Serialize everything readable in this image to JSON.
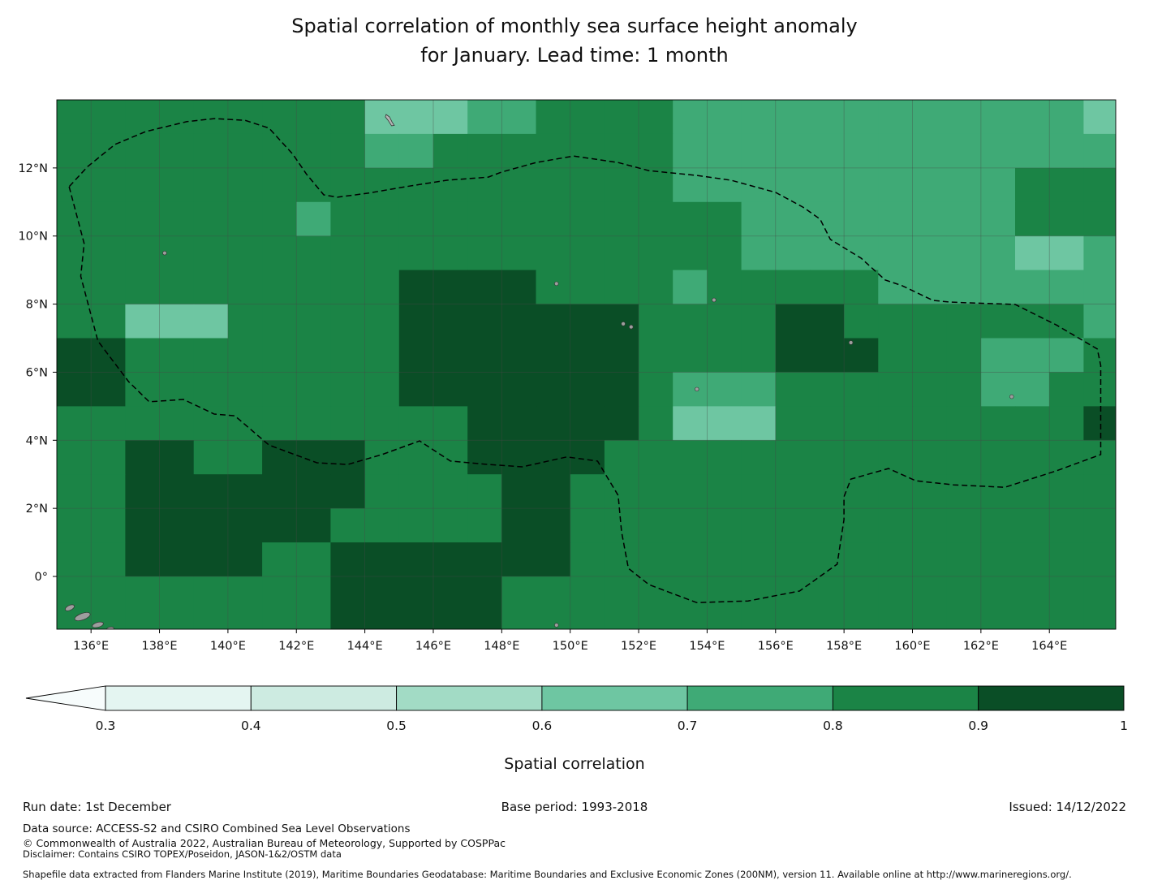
{
  "title": {
    "line1": "Spatial correlation of monthly sea surface height anomaly",
    "line2": "for January. Lead time: 1 month"
  },
  "colorbar": {
    "label": "Spatial correlation",
    "ticks": [
      "0.3",
      "0.4",
      "0.5",
      "0.6",
      "0.7",
      "0.8",
      "0.9",
      "1"
    ],
    "boundaries": [
      0.3,
      0.4,
      0.5,
      0.6,
      0.7,
      0.8,
      0.9,
      1.0
    ],
    "under_color": "#f7fcfc",
    "band_colors": [
      "#e4f5f1",
      "#cdebe1",
      "#a2dbc5",
      "#6ec6a2",
      "#3faa76",
      "#1b8446",
      "#0a4e26"
    ]
  },
  "footer": {
    "run_date": "Run date: 1st December",
    "base_period": "Base period: 1993-2018",
    "issued": "Issued: 14/12/2022",
    "data_source": "Data source: ACCESS-S2 and CSIRO Combined Sea Level Observations",
    "copyright": "© Commonwealth of Australia 2022, Australian Bureau of Meteorology, Supported by COSPPac",
    "disclaimer": "Disclaimer: Contains CSIRO TOPEX/Poseidon, JASON-1&2/OSTM data",
    "shapefile": "Shapefile data extracted from Flanders Marine Institute (2019), Maritime Boundaries Geodatabase: Maritime Boundaries and Exclusive Economic Zones (200NM), version 11. Available online at http://www.marineregions.org/."
  },
  "chart_data": {
    "type": "heatmap",
    "title": "Spatial correlation of monthly sea surface height anomaly for January. Lead time: 1 month",
    "xlabel": "",
    "ylabel": "",
    "legend": "Spatial correlation, banded colour scale 0.3 to 1 in 0.1 steps",
    "x_range_lon_e": [
      135,
      166
    ],
    "y_range_lat_n": [
      -1.6,
      14
    ],
    "grid_on": true,
    "xticks": [
      {
        "lon": 136,
        "label": "136°E"
      },
      {
        "lon": 138,
        "label": "138°E"
      },
      {
        "lon": 140,
        "label": "140°E"
      },
      {
        "lon": 142,
        "label": "142°E"
      },
      {
        "lon": 144,
        "label": "144°E"
      },
      {
        "lon": 146,
        "label": "146°E"
      },
      {
        "lon": 148,
        "label": "148°E"
      },
      {
        "lon": 150,
        "label": "150°E"
      },
      {
        "lon": 152,
        "label": "152°E"
      },
      {
        "lon": 154,
        "label": "154°E"
      },
      {
        "lon": 156,
        "label": "156°E"
      },
      {
        "lon": 158,
        "label": "158°E"
      },
      {
        "lon": 160,
        "label": "160°E"
      },
      {
        "lon": 162,
        "label": "162°E"
      },
      {
        "lon": 164,
        "label": "164°E"
      }
    ],
    "yticks": [
      {
        "lat": 12,
        "label": "12°N"
      },
      {
        "lat": 10,
        "label": "10°N"
      },
      {
        "lat": 8,
        "label": "8°N"
      },
      {
        "lat": 6,
        "label": "6°N"
      },
      {
        "lat": 4,
        "label": "4°N"
      },
      {
        "lat": 2,
        "label": "2°N"
      },
      {
        "lat": 0,
        "label": "0°"
      }
    ],
    "grid_lon_start": 135,
    "grid_lat_start": 14,
    "grid_step_deg": 1,
    "values_note": "Estimated correlation band midpoints; rows run north to south (lat 14N to -2), columns west to east (lon 135E to 166E)",
    "values": [
      [
        0.85,
        0.85,
        0.85,
        0.85,
        0.85,
        0.85,
        0.85,
        0.85,
        0.85,
        0.65,
        0.65,
        0.65,
        0.75,
        0.75,
        0.85,
        0.85,
        0.85,
        0.85,
        0.75,
        0.75,
        0.75,
        0.75,
        0.75,
        0.75,
        0.75,
        0.75,
        0.75,
        0.75,
        0.75,
        0.75,
        0.65
      ],
      [
        0.85,
        0.85,
        0.85,
        0.85,
        0.85,
        0.85,
        0.85,
        0.85,
        0.85,
        0.75,
        0.75,
        0.85,
        0.85,
        0.85,
        0.85,
        0.85,
        0.85,
        0.85,
        0.75,
        0.75,
        0.75,
        0.75,
        0.75,
        0.75,
        0.75,
        0.75,
        0.75,
        0.75,
        0.75,
        0.75,
        0.75
      ],
      [
        0.85,
        0.85,
        0.85,
        0.85,
        0.85,
        0.85,
        0.85,
        0.85,
        0.85,
        0.85,
        0.85,
        0.85,
        0.85,
        0.85,
        0.85,
        0.85,
        0.85,
        0.85,
        0.75,
        0.75,
        0.75,
        0.75,
        0.75,
        0.75,
        0.75,
        0.75,
        0.75,
        0.75,
        0.85,
        0.85,
        0.85
      ],
      [
        0.85,
        0.85,
        0.85,
        0.85,
        0.85,
        0.85,
        0.85,
        0.75,
        0.85,
        0.85,
        0.85,
        0.85,
        0.85,
        0.85,
        0.85,
        0.85,
        0.85,
        0.85,
        0.85,
        0.85,
        0.75,
        0.75,
        0.75,
        0.75,
        0.75,
        0.75,
        0.75,
        0.75,
        0.85,
        0.85,
        0.85
      ],
      [
        0.85,
        0.85,
        0.85,
        0.85,
        0.85,
        0.85,
        0.85,
        0.85,
        0.85,
        0.85,
        0.85,
        0.85,
        0.85,
        0.85,
        0.85,
        0.85,
        0.85,
        0.85,
        0.85,
        0.85,
        0.75,
        0.75,
        0.75,
        0.75,
        0.75,
        0.75,
        0.75,
        0.75,
        0.65,
        0.65,
        0.75
      ],
      [
        0.85,
        0.85,
        0.85,
        0.85,
        0.85,
        0.85,
        0.85,
        0.85,
        0.85,
        0.85,
        0.95,
        0.95,
        0.95,
        0.95,
        0.85,
        0.85,
        0.85,
        0.85,
        0.75,
        0.85,
        0.85,
        0.85,
        0.85,
        0.85,
        0.75,
        0.75,
        0.75,
        0.75,
        0.75,
        0.75,
        0.75
      ],
      [
        0.85,
        0.85,
        0.65,
        0.65,
        0.65,
        0.85,
        0.85,
        0.85,
        0.85,
        0.85,
        0.95,
        0.95,
        0.95,
        0.95,
        0.95,
        0.95,
        0.95,
        0.85,
        0.85,
        0.85,
        0.85,
        0.95,
        0.95,
        0.85,
        0.85,
        0.85,
        0.85,
        0.85,
        0.85,
        0.85,
        0.75
      ],
      [
        0.95,
        0.95,
        0.85,
        0.85,
        0.85,
        0.85,
        0.85,
        0.85,
        0.85,
        0.85,
        0.95,
        0.95,
        0.95,
        0.95,
        0.95,
        0.95,
        0.95,
        0.85,
        0.85,
        0.85,
        0.85,
        0.95,
        0.95,
        0.95,
        0.85,
        0.85,
        0.85,
        0.75,
        0.75,
        0.75,
        0.85
      ],
      [
        0.95,
        0.95,
        0.85,
        0.85,
        0.85,
        0.85,
        0.85,
        0.85,
        0.85,
        0.85,
        0.95,
        0.95,
        0.95,
        0.95,
        0.95,
        0.95,
        0.95,
        0.85,
        0.75,
        0.75,
        0.75,
        0.85,
        0.85,
        0.85,
        0.85,
        0.85,
        0.85,
        0.75,
        0.75,
        0.85,
        0.85
      ],
      [
        0.85,
        0.85,
        0.85,
        0.85,
        0.85,
        0.85,
        0.85,
        0.85,
        0.85,
        0.85,
        0.85,
        0.85,
        0.95,
        0.95,
        0.95,
        0.95,
        0.95,
        0.85,
        0.65,
        0.65,
        0.65,
        0.85,
        0.85,
        0.85,
        0.85,
        0.85,
        0.85,
        0.85,
        0.85,
        0.85,
        0.95
      ],
      [
        0.85,
        0.85,
        0.95,
        0.95,
        0.85,
        0.85,
        0.95,
        0.95,
        0.95,
        0.85,
        0.85,
        0.85,
        0.95,
        0.95,
        0.95,
        0.95,
        0.85,
        0.85,
        0.85,
        0.85,
        0.85,
        0.85,
        0.85,
        0.85,
        0.85,
        0.85,
        0.85,
        0.85,
        0.85,
        0.85,
        0.85
      ],
      [
        0.85,
        0.85,
        0.95,
        0.95,
        0.95,
        0.95,
        0.95,
        0.95,
        0.95,
        0.85,
        0.85,
        0.85,
        0.85,
        0.95,
        0.95,
        0.85,
        0.85,
        0.85,
        0.85,
        0.85,
        0.85,
        0.85,
        0.85,
        0.85,
        0.85,
        0.85,
        0.85,
        0.85,
        0.85,
        0.85,
        0.85
      ],
      [
        0.85,
        0.85,
        0.95,
        0.95,
        0.95,
        0.95,
        0.95,
        0.95,
        0.85,
        0.85,
        0.85,
        0.85,
        0.85,
        0.95,
        0.95,
        0.85,
        0.85,
        0.85,
        0.85,
        0.85,
        0.85,
        0.85,
        0.85,
        0.85,
        0.85,
        0.85,
        0.85,
        0.85,
        0.85,
        0.85,
        0.85
      ],
      [
        0.85,
        0.85,
        0.95,
        0.95,
        0.95,
        0.95,
        0.85,
        0.85,
        0.95,
        0.95,
        0.95,
        0.95,
        0.95,
        0.95,
        0.95,
        0.85,
        0.85,
        0.85,
        0.85,
        0.85,
        0.85,
        0.85,
        0.85,
        0.85,
        0.85,
        0.85,
        0.85,
        0.85,
        0.85,
        0.85,
        0.85
      ],
      [
        0.85,
        0.85,
        0.85,
        0.85,
        0.85,
        0.85,
        0.85,
        0.85,
        0.95,
        0.95,
        0.95,
        0.95,
        0.95,
        0.85,
        0.85,
        0.85,
        0.85,
        0.85,
        0.85,
        0.85,
        0.85,
        0.85,
        0.85,
        0.85,
        0.85,
        0.85,
        0.85,
        0.85,
        0.85,
        0.85,
        0.85
      ],
      [
        0.85,
        0.85,
        0.85,
        0.85,
        0.85,
        0.85,
        0.85,
        0.85,
        0.95,
        0.95,
        0.95,
        0.95,
        0.95,
        0.85,
        0.85,
        0.85,
        0.85,
        0.85,
        0.85,
        0.85,
        0.85,
        0.85,
        0.85,
        0.85,
        0.85,
        0.85,
        0.85,
        0.85,
        0.85,
        0.85,
        0.85
      ]
    ],
    "eez_boundary_lonlat": [
      [
        135.36,
        11.45
      ],
      [
        135.8,
        9.78
      ],
      [
        135.7,
        8.82
      ],
      [
        136.2,
        6.92
      ],
      [
        137.1,
        5.72
      ],
      [
        137.7,
        5.13
      ],
      [
        138.7,
        5.2
      ],
      [
        139.6,
        4.77
      ],
      [
        140.2,
        4.72
      ],
      [
        141.2,
        3.86
      ],
      [
        142.6,
        3.34
      ],
      [
        143.5,
        3.29
      ],
      [
        144.5,
        3.58
      ],
      [
        145.6,
        3.98
      ],
      [
        146.5,
        3.39
      ],
      [
        147.6,
        3.29
      ],
      [
        148.6,
        3.22
      ],
      [
        149.9,
        3.51
      ],
      [
        150.8,
        3.39
      ],
      [
        151.4,
        2.38
      ],
      [
        151.5,
        1.31
      ],
      [
        151.7,
        0.24
      ],
      [
        152.3,
        -0.24
      ],
      [
        153.7,
        -0.77
      ],
      [
        155.2,
        -0.72
      ],
      [
        156.7,
        -0.43
      ],
      [
        157.8,
        0.36
      ],
      [
        158.0,
        1.67
      ],
      [
        158.0,
        2.34
      ],
      [
        158.2,
        2.86
      ],
      [
        159.3,
        3.17
      ],
      [
        160.1,
        2.81
      ],
      [
        161.2,
        2.69
      ],
      [
        162.7,
        2.62
      ],
      [
        164.2,
        3.1
      ],
      [
        165.5,
        3.58
      ],
      [
        165.5,
        4.89
      ],
      [
        165.5,
        6.2
      ],
      [
        165.4,
        6.68
      ],
      [
        164.2,
        7.39
      ],
      [
        163.0,
        7.99
      ],
      [
        161.1,
        8.06
      ],
      [
        160.6,
        8.11
      ],
      [
        159.7,
        8.54
      ],
      [
        159.2,
        8.71
      ],
      [
        158.5,
        9.35
      ],
      [
        157.6,
        9.9
      ],
      [
        157.3,
        10.5
      ],
      [
        156.8,
        10.85
      ],
      [
        156.0,
        11.28
      ],
      [
        154.7,
        11.64
      ],
      [
        153.7,
        11.78
      ],
      [
        152.3,
        11.92
      ],
      [
        151.4,
        12.16
      ],
      [
        150.1,
        12.35
      ],
      [
        149.0,
        12.16
      ],
      [
        148.0,
        11.88
      ],
      [
        147.6,
        11.73
      ],
      [
        146.4,
        11.64
      ],
      [
        145.2,
        11.45
      ],
      [
        144.1,
        11.26
      ],
      [
        143.2,
        11.14
      ],
      [
        142.8,
        11.21
      ],
      [
        142.3,
        11.81
      ],
      [
        141.9,
        12.4
      ],
      [
        141.2,
        13.17
      ],
      [
        140.5,
        13.4
      ],
      [
        139.6,
        13.45
      ],
      [
        138.8,
        13.36
      ],
      [
        137.6,
        13.07
      ],
      [
        136.7,
        12.69
      ],
      [
        135.9,
        12.04
      ]
    ],
    "land_dots_lonlat": [
      [
        138.15,
        9.5
      ],
      [
        149.6,
        8.6
      ],
      [
        151.55,
        7.42
      ],
      [
        151.78,
        7.33
      ],
      [
        154.2,
        8.12
      ],
      [
        153.7,
        5.5
      ],
      [
        158.2,
        6.87
      ],
      [
        162.9,
        5.28
      ],
      [
        149.6,
        -1.43
      ]
    ],
    "land_islands": [
      {
        "lon": 135.38,
        "lat": -0.92,
        "rx": 6,
        "ry": 3,
        "rot": -25
      },
      {
        "lon": 135.75,
        "lat": -1.18,
        "rx": 10,
        "ry": 4,
        "rot": -20
      },
      {
        "lon": 136.2,
        "lat": -1.42,
        "rx": 7,
        "ry": 3,
        "rot": -15
      },
      {
        "lon": 136.55,
        "lat": -1.55,
        "rx": 5,
        "ry": 2.5,
        "rot": -15
      }
    ],
    "guam_poly_lonlat": [
      [
        144.62,
        13.57
      ],
      [
        144.72,
        13.5
      ],
      [
        144.8,
        13.34
      ],
      [
        144.86,
        13.25
      ],
      [
        144.78,
        13.24
      ],
      [
        144.68,
        13.4
      ],
      [
        144.6,
        13.5
      ]
    ]
  }
}
